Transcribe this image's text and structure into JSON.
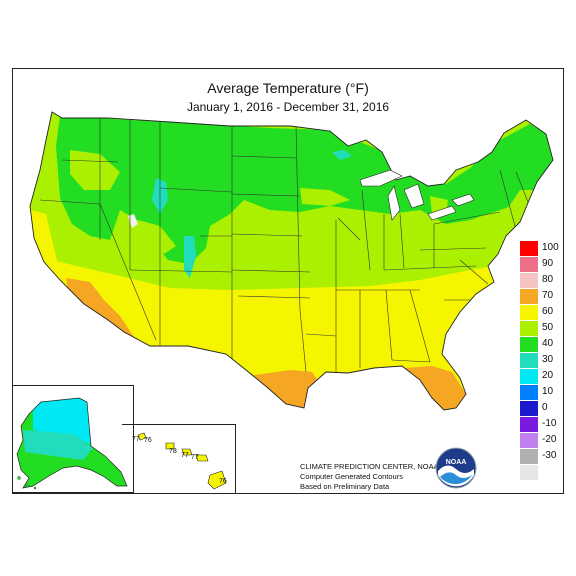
{
  "map": {
    "title": "Average Temperature (°F)",
    "subtitle": "January 1, 2016 - December 31, 2016"
  },
  "legend": {
    "items": [
      {
        "label": "100",
        "color": "#ff0000"
      },
      {
        "label": "90",
        "color": "#ee6f88"
      },
      {
        "label": "80",
        "color": "#f6c3c3"
      },
      {
        "label": "70",
        "color": "#f5a623"
      },
      {
        "label": "60",
        "color": "#f5f500"
      },
      {
        "label": "50",
        "color": "#aaf000"
      },
      {
        "label": "40",
        "color": "#22dd22"
      },
      {
        "label": "30",
        "color": "#22ddbb"
      },
      {
        "label": "20",
        "color": "#00e8f4"
      },
      {
        "label": "10",
        "color": "#0080ff"
      },
      {
        "label": "0",
        "color": "#1a1acc"
      },
      {
        "label": "-10",
        "color": "#7a1ae0"
      },
      {
        "label": "-20",
        "color": "#c080f0"
      },
      {
        "label": "-30",
        "color": "#b0b0b0"
      },
      {
        "label": "",
        "color": "#e6e6e6"
      }
    ]
  },
  "hawaii_values": [
    "77",
    "76",
    "78",
    "77",
    "77",
    "76"
  ],
  "credit": {
    "line1": "CLIMATE PREDICTION CENTER, NOAA",
    "line2": "Computer Generated Contours",
    "line3": "Based on Preliminary Data"
  },
  "logo": {
    "text": "NOAA"
  }
}
